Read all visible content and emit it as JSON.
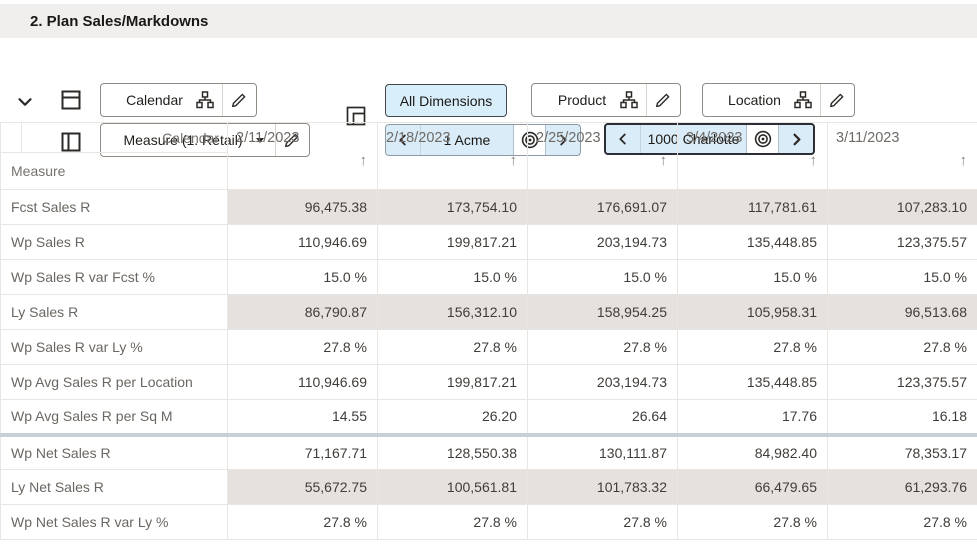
{
  "title": "2. Plan Sales/Markdowns",
  "toolbar": {
    "rows_axis_label": "Calendar",
    "cols_axis_label": "Measure (1. Retail)",
    "all_dimensions_label": "All Dimensions",
    "product_label": "Product",
    "location_label": "Location",
    "product_page_value": "1 Acme",
    "location_page_value": "1000 Charlotte"
  },
  "table": {
    "corner_top_label": "Calendar",
    "corner_bottom_label": "Measure",
    "sort_icon": "↑",
    "columns": [
      "2/11/2023",
      "2/18/2023",
      "2/25/2023",
      "3/4/2023",
      "3/11/2023"
    ],
    "rows": [
      {
        "label": "Fcst Sales R",
        "shaded": true,
        "thick_top": false,
        "values": [
          "96,475.38",
          "173,754.10",
          "176,691.07",
          "117,781.61",
          "107,283.10"
        ]
      },
      {
        "label": "Wp Sales R",
        "shaded": false,
        "thick_top": false,
        "values": [
          "110,946.69",
          "199,817.21",
          "203,194.73",
          "135,448.85",
          "123,375.57"
        ]
      },
      {
        "label": "Wp Sales R var Fcst %",
        "shaded": false,
        "thick_top": false,
        "values": [
          "15.0 %",
          "15.0 %",
          "15.0 %",
          "15.0 %",
          "15.0 %"
        ]
      },
      {
        "label": "Ly Sales R",
        "shaded": true,
        "thick_top": false,
        "values": [
          "86,790.87",
          "156,312.10",
          "158,954.25",
          "105,958.31",
          "96,513.68"
        ]
      },
      {
        "label": "Wp Sales R var Ly %",
        "shaded": false,
        "thick_top": false,
        "values": [
          "27.8 %",
          "27.8 %",
          "27.8 %",
          "27.8 %",
          "27.8 %"
        ]
      },
      {
        "label": "Wp Avg Sales R per Location",
        "shaded": false,
        "thick_top": false,
        "values": [
          "110,946.69",
          "199,817.21",
          "203,194.73",
          "135,448.85",
          "123,375.57"
        ]
      },
      {
        "label": "Wp Avg Sales R per Sq M",
        "shaded": false,
        "thick_top": false,
        "values": [
          "14.55",
          "26.20",
          "26.64",
          "17.76",
          "16.18"
        ]
      },
      {
        "label": "Wp Net Sales R",
        "shaded": false,
        "thick_top": true,
        "values": [
          "71,167.71",
          "128,550.38",
          "130,111.87",
          "84,982.40",
          "78,353.17"
        ]
      },
      {
        "label": "Ly Net Sales R",
        "shaded": true,
        "thick_top": false,
        "values": [
          "55,672.75",
          "100,561.81",
          "101,783.32",
          "66,479.65",
          "61,293.76"
        ]
      },
      {
        "label": "Wp Net Sales R var Ly %",
        "shaded": false,
        "thick_top": false,
        "values": [
          "27.8 %",
          "27.8 %",
          "27.8 %",
          "27.8 %",
          "27.8 %"
        ]
      }
    ]
  },
  "colors": {
    "titlebar_bg": "#f1efed",
    "accent_light_blue": "#d9ecf8",
    "all_dimensions_bg": "#d8eefb",
    "shaded_cell_bg": "#e4e1df",
    "thick_divider": "#c9cfd6",
    "focused_pager_border": "#2b2e34"
  }
}
